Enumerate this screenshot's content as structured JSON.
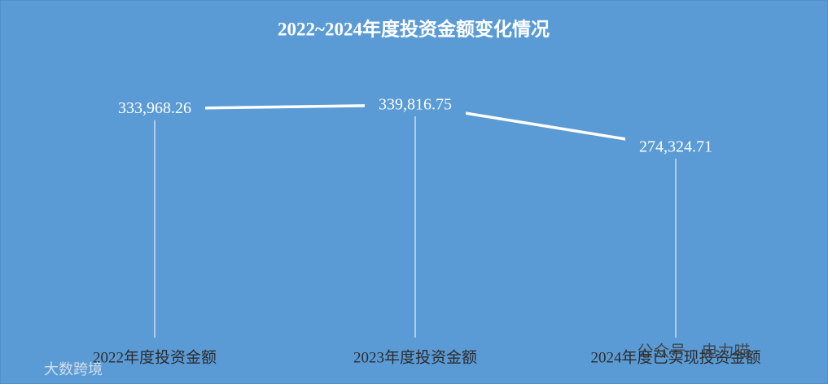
{
  "chart_data": {
    "type": "line",
    "title": "2022~2024年度投资金额变化情况",
    "categories": [
      "2022年度投资金额",
      "2023年度投资金额",
      "2024年度已实现投资金额"
    ],
    "series": [
      {
        "color": "#ffffff",
        "values": [
          333968.26,
          339816.75,
          274324.71
        ],
        "value_labels": [
          "333,968.26",
          "339,816.75",
          "274,324.71"
        ]
      }
    ],
    "droplines": true
  },
  "watermarks": [
    "公众号 · 电力喵",
    "大数跨境"
  ]
}
